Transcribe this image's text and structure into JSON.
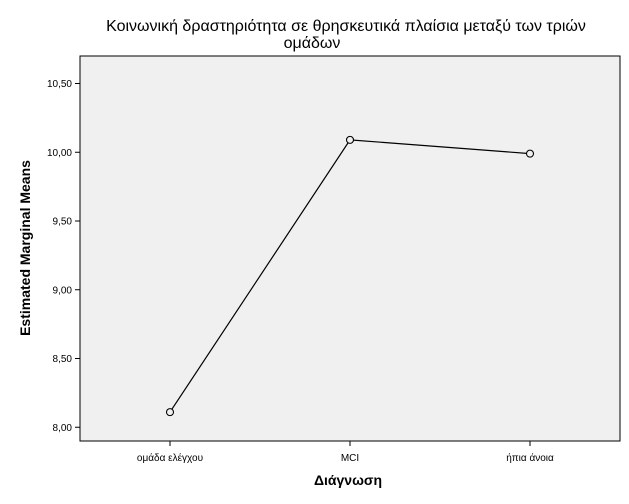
{
  "chart_data": {
    "type": "line",
    "title_lines": [
      "Κοινωνική δραστηριότητα σε θρησκευτικά πλαίσια μεταξύ των τριών",
      "ομάδων"
    ],
    "xlabel": "Διάγνωση",
    "ylabel": "Estimated Marginal Means",
    "categories": [
      "ομάδα ελέγχου",
      "MCI",
      "ήπια άνοια"
    ],
    "series": [
      {
        "values": [
          8.11,
          10.09,
          9.99
        ],
        "color": "#000000",
        "marker": "open-circle"
      }
    ],
    "ylim": [
      7.9,
      10.7
    ],
    "yticks": [
      {
        "value": 8.0,
        "label": "8,00"
      },
      {
        "value": 8.5,
        "label": "8,50"
      },
      {
        "value": 9.0,
        "label": "9,00"
      },
      {
        "value": 9.5,
        "label": "9,50"
      },
      {
        "value": 10.0,
        "label": "10,00"
      },
      {
        "value": 10.5,
        "label": "10,50"
      }
    ],
    "grid": false,
    "legend": false,
    "background_color": "#ffffff",
    "plot_area_color": "#f0f0f0",
    "frame_color": "#000000"
  }
}
